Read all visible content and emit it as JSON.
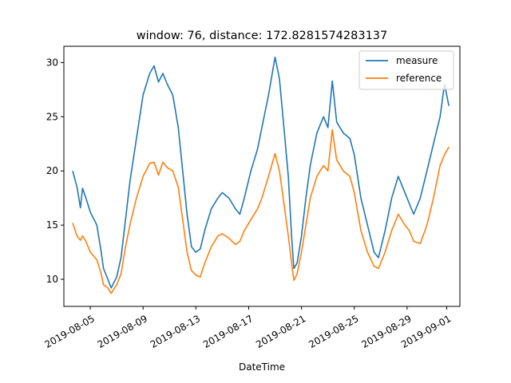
{
  "chart_data": {
    "type": "line",
    "title": "window: 76, distance: 172.8281574283137",
    "xlabel": "DateTime",
    "ylabel": "",
    "ylim": [
      7.5,
      31.5
    ],
    "xlim": [
      "2019-08-03T00:00",
      "2019-09-02T00:00"
    ],
    "x_ticks": [
      "2019-08-05",
      "2019-08-09",
      "2019-08-13",
      "2019-08-17",
      "2019-08-21",
      "2019-08-25",
      "2019-08-29",
      "2019-09-01"
    ],
    "y_ticks": [
      10,
      15,
      20,
      25,
      30
    ],
    "grid": false,
    "legend_position": "upper-right",
    "series": [
      {
        "name": "measure",
        "color": "#1f77b4",
        "points": [
          [
            "2019-08-03T16:00",
            20.0
          ],
          [
            "2019-08-04T00:00",
            18.5
          ],
          [
            "2019-08-04T06:00",
            16.6
          ],
          [
            "2019-08-04T10:00",
            18.4
          ],
          [
            "2019-08-04T16:00",
            17.5
          ],
          [
            "2019-08-05T00:00",
            16.2
          ],
          [
            "2019-08-05T12:00",
            15.0
          ],
          [
            "2019-08-05T20:00",
            12.5
          ],
          [
            "2019-08-06T00:00",
            11.0
          ],
          [
            "2019-08-06T08:00",
            10.0
          ],
          [
            "2019-08-06T14:00",
            9.2
          ],
          [
            "2019-08-07T00:00",
            10.2
          ],
          [
            "2019-08-07T08:00",
            12.0
          ],
          [
            "2019-08-07T16:00",
            15.5
          ],
          [
            "2019-08-08T00:00",
            19.0
          ],
          [
            "2019-08-08T12:00",
            23.0
          ],
          [
            "2019-08-09T00:00",
            27.0
          ],
          [
            "2019-08-09T12:00",
            29.0
          ],
          [
            "2019-08-09T20:00",
            29.7
          ],
          [
            "2019-08-10T04:00",
            28.2
          ],
          [
            "2019-08-10T12:00",
            29.0
          ],
          [
            "2019-08-10T20:00",
            28.0
          ],
          [
            "2019-08-11T06:00",
            27.0
          ],
          [
            "2019-08-11T16:00",
            24.0
          ],
          [
            "2019-08-12T00:00",
            20.0
          ],
          [
            "2019-08-12T08:00",
            16.0
          ],
          [
            "2019-08-12T16:00",
            13.0
          ],
          [
            "2019-08-13T00:00",
            12.5
          ],
          [
            "2019-08-13T08:00",
            12.8
          ],
          [
            "2019-08-13T16:00",
            14.5
          ],
          [
            "2019-08-14T04:00",
            16.5
          ],
          [
            "2019-08-14T16:00",
            17.5
          ],
          [
            "2019-08-15T00:00",
            18.0
          ],
          [
            "2019-08-15T12:00",
            17.5
          ],
          [
            "2019-08-16T00:00",
            16.5
          ],
          [
            "2019-08-16T08:00",
            16.0
          ],
          [
            "2019-08-16T16:00",
            17.5
          ],
          [
            "2019-08-17T04:00",
            20.0
          ],
          [
            "2019-08-17T16:00",
            22.0
          ],
          [
            "2019-08-18T00:00",
            24.0
          ],
          [
            "2019-08-18T12:00",
            27.0
          ],
          [
            "2019-08-19T00:00",
            30.5
          ],
          [
            "2019-08-19T08:00",
            28.5
          ],
          [
            "2019-08-19T16:00",
            24.0
          ],
          [
            "2019-08-20T00:00",
            19.5
          ],
          [
            "2019-08-20T06:00",
            14.0
          ],
          [
            "2019-08-20T10:00",
            11.0
          ],
          [
            "2019-08-20T16:00",
            11.5
          ],
          [
            "2019-08-21T00:00",
            14.0
          ],
          [
            "2019-08-21T08:00",
            17.5
          ],
          [
            "2019-08-21T16:00",
            20.5
          ],
          [
            "2019-08-22T04:00",
            23.5
          ],
          [
            "2019-08-22T16:00",
            25.0
          ],
          [
            "2019-08-23T00:00",
            24.0
          ],
          [
            "2019-08-23T08:00",
            28.3
          ],
          [
            "2019-08-23T16:00",
            24.5
          ],
          [
            "2019-08-24T04:00",
            23.5
          ],
          [
            "2019-08-24T16:00",
            23.0
          ],
          [
            "2019-08-25T00:00",
            21.5
          ],
          [
            "2019-08-25T12:00",
            17.5
          ],
          [
            "2019-08-26T00:00",
            15.0
          ],
          [
            "2019-08-26T12:00",
            12.5
          ],
          [
            "2019-08-26T20:00",
            12.0
          ],
          [
            "2019-08-27T08:00",
            14.5
          ],
          [
            "2019-08-27T20:00",
            17.5
          ],
          [
            "2019-08-28T08:00",
            19.5
          ],
          [
            "2019-08-28T20:00",
            18.0
          ],
          [
            "2019-08-29T04:00",
            17.0
          ],
          [
            "2019-08-29T12:00",
            16.0
          ],
          [
            "2019-08-30T00:00",
            17.5
          ],
          [
            "2019-08-30T12:00",
            20.0
          ],
          [
            "2019-08-31T00:00",
            22.5
          ],
          [
            "2019-08-31T12:00",
            25.0
          ],
          [
            "2019-08-31T20:00",
            28.0
          ],
          [
            "2019-09-01T04:00",
            26.0
          ]
        ]
      },
      {
        "name": "reference",
        "color": "#ff7f0e",
        "points": [
          [
            "2019-08-03T16:00",
            15.2
          ],
          [
            "2019-08-04T00:00",
            14.0
          ],
          [
            "2019-08-04T06:00",
            13.6
          ],
          [
            "2019-08-04T10:00",
            14.0
          ],
          [
            "2019-08-04T16:00",
            13.5
          ],
          [
            "2019-08-05T00:00",
            12.5
          ],
          [
            "2019-08-05T12:00",
            11.8
          ],
          [
            "2019-08-05T20:00",
            10.5
          ],
          [
            "2019-08-06T00:00",
            9.5
          ],
          [
            "2019-08-06T08:00",
            9.2
          ],
          [
            "2019-08-06T14:00",
            8.7
          ],
          [
            "2019-08-07T00:00",
            9.5
          ],
          [
            "2019-08-07T08:00",
            10.5
          ],
          [
            "2019-08-07T16:00",
            13.0
          ],
          [
            "2019-08-08T00:00",
            15.0
          ],
          [
            "2019-08-08T12:00",
            17.5
          ],
          [
            "2019-08-09T00:00",
            19.5
          ],
          [
            "2019-08-09T12:00",
            20.7
          ],
          [
            "2019-08-09T20:00",
            20.8
          ],
          [
            "2019-08-10T04:00",
            19.6
          ],
          [
            "2019-08-10T12:00",
            20.8
          ],
          [
            "2019-08-10T20:00",
            20.3
          ],
          [
            "2019-08-11T06:00",
            20.0
          ],
          [
            "2019-08-11T16:00",
            18.5
          ],
          [
            "2019-08-12T00:00",
            15.5
          ],
          [
            "2019-08-12T08:00",
            12.5
          ],
          [
            "2019-08-12T16:00",
            10.8
          ],
          [
            "2019-08-13T00:00",
            10.4
          ],
          [
            "2019-08-13T08:00",
            10.2
          ],
          [
            "2019-08-13T16:00",
            11.5
          ],
          [
            "2019-08-14T04:00",
            13.0
          ],
          [
            "2019-08-14T16:00",
            14.0
          ],
          [
            "2019-08-15T00:00",
            14.2
          ],
          [
            "2019-08-15T12:00",
            13.8
          ],
          [
            "2019-08-16T00:00",
            13.2
          ],
          [
            "2019-08-16T08:00",
            13.5
          ],
          [
            "2019-08-16T16:00",
            14.5
          ],
          [
            "2019-08-17T04:00",
            15.5
          ],
          [
            "2019-08-17T16:00",
            16.5
          ],
          [
            "2019-08-18T00:00",
            17.5
          ],
          [
            "2019-08-18T12:00",
            19.5
          ],
          [
            "2019-08-19T00:00",
            21.6
          ],
          [
            "2019-08-19T08:00",
            20.0
          ],
          [
            "2019-08-19T16:00",
            17.0
          ],
          [
            "2019-08-20T00:00",
            14.0
          ],
          [
            "2019-08-20T06:00",
            11.5
          ],
          [
            "2019-08-20T10:00",
            9.9
          ],
          [
            "2019-08-20T16:00",
            10.5
          ],
          [
            "2019-08-21T00:00",
            12.5
          ],
          [
            "2019-08-21T08:00",
            15.0
          ],
          [
            "2019-08-21T16:00",
            17.5
          ],
          [
            "2019-08-22T04:00",
            19.5
          ],
          [
            "2019-08-22T16:00",
            20.5
          ],
          [
            "2019-08-23T00:00",
            20.0
          ],
          [
            "2019-08-23T08:00",
            23.8
          ],
          [
            "2019-08-23T16:00",
            21.0
          ],
          [
            "2019-08-24T04:00",
            20.0
          ],
          [
            "2019-08-24T16:00",
            19.5
          ],
          [
            "2019-08-25T00:00",
            18.0
          ],
          [
            "2019-08-25T12:00",
            14.5
          ],
          [
            "2019-08-26T00:00",
            12.5
          ],
          [
            "2019-08-26T12:00",
            11.2
          ],
          [
            "2019-08-26T20:00",
            11.0
          ],
          [
            "2019-08-27T08:00",
            12.5
          ],
          [
            "2019-08-27T20:00",
            14.5
          ],
          [
            "2019-08-28T08:00",
            16.0
          ],
          [
            "2019-08-28T20:00",
            15.0
          ],
          [
            "2019-08-29T04:00",
            14.5
          ],
          [
            "2019-08-29T12:00",
            13.5
          ],
          [
            "2019-08-30T00:00",
            13.3
          ],
          [
            "2019-08-30T12:00",
            15.0
          ],
          [
            "2019-08-31T00:00",
            17.5
          ],
          [
            "2019-08-31T12:00",
            20.5
          ],
          [
            "2019-08-31T20:00",
            21.5
          ],
          [
            "2019-09-01T04:00",
            22.2
          ]
        ]
      }
    ]
  }
}
